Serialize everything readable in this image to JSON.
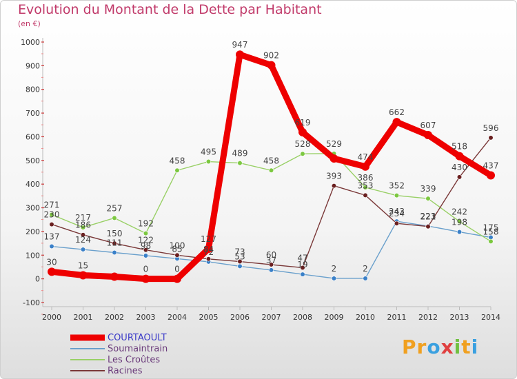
{
  "title": "Evolution du Montant de la Dette par Habitant",
  "subtitle": "(en €)",
  "logo": {
    "text": "Proxiti",
    "letters": [
      "P",
      "r",
      "o",
      "x",
      "i",
      "t",
      "i"
    ],
    "colors": [
      "#f0a020",
      "#f0a020",
      "#3aa0e0",
      "#e04040",
      "#70c040",
      "#f0a020",
      "#3aa0e0"
    ]
  },
  "chart_data": {
    "type": "line",
    "title": "Evolution du Montant de la Dette par Habitant",
    "ylabel": "(en €)",
    "xlabel": "",
    "ylim": [
      -100,
      1000
    ],
    "yticks": [
      -100,
      0,
      100,
      200,
      300,
      400,
      500,
      600,
      700,
      800,
      900,
      1000
    ],
    "categories": [
      "2000",
      "2001",
      "2002",
      "2003",
      "2004",
      "2005",
      "2006",
      "2007",
      "2008",
      "2009",
      "2010",
      "2011",
      "2012",
      "2013",
      "2014"
    ],
    "grid": false,
    "legend": "bottom-left",
    "series": [
      {
        "name": "COURTAOULT",
        "color": "#ee0000",
        "markerFill": "#ee0000",
        "values": [
          30,
          15,
          9,
          0,
          0,
          127,
          947,
          902,
          619,
          508,
          474,
          662,
          607,
          518,
          437
        ],
        "labels": [
          "30",
          "15",
          "",
          "0",
          "0",
          "127",
          "947",
          "902",
          "619",
          "",
          "474",
          "662",
          "607",
          "518",
          "437"
        ]
      },
      {
        "name": "Soumaintrain",
        "color": "#6aa0cc",
        "markerFill": "#3a80c8",
        "values": [
          137,
          124,
          111,
          98,
          85,
          72,
          53,
          37,
          19,
          2,
          2,
          243,
          223,
          198,
          175
        ],
        "labels": [
          "137",
          "124",
          "111",
          "98",
          "85",
          "72",
          "53",
          "37",
          "19",
          "2",
          "2",
          "243",
          "223",
          "198",
          "175"
        ]
      },
      {
        "name": "Les Croûtes",
        "color": "#99d066",
        "markerFill": "#7cc840",
        "values": [
          271,
          217,
          257,
          192,
          458,
          495,
          489,
          458,
          528,
          529,
          386,
          352,
          339,
          242,
          158
        ],
        "labels": [
          "271",
          "217",
          "257",
          "192",
          "458",
          "495",
          "489",
          "458",
          "528",
          "529",
          "386",
          "352",
          "339",
          "242",
          "158"
        ]
      },
      {
        "name": "Racines",
        "color": "#7a3838",
        "markerFill": "#6a2020",
        "values": [
          230,
          186,
          150,
          122,
          100,
          84,
          73,
          60,
          47,
          393,
          353,
          234,
          221,
          430,
          596
        ],
        "labels": [
          "230",
          "186",
          "150",
          "122",
          "100",
          "84",
          "73",
          "60",
          "47",
          "393",
          "353",
          "234",
          "221",
          "430",
          "596"
        ]
      }
    ]
  }
}
